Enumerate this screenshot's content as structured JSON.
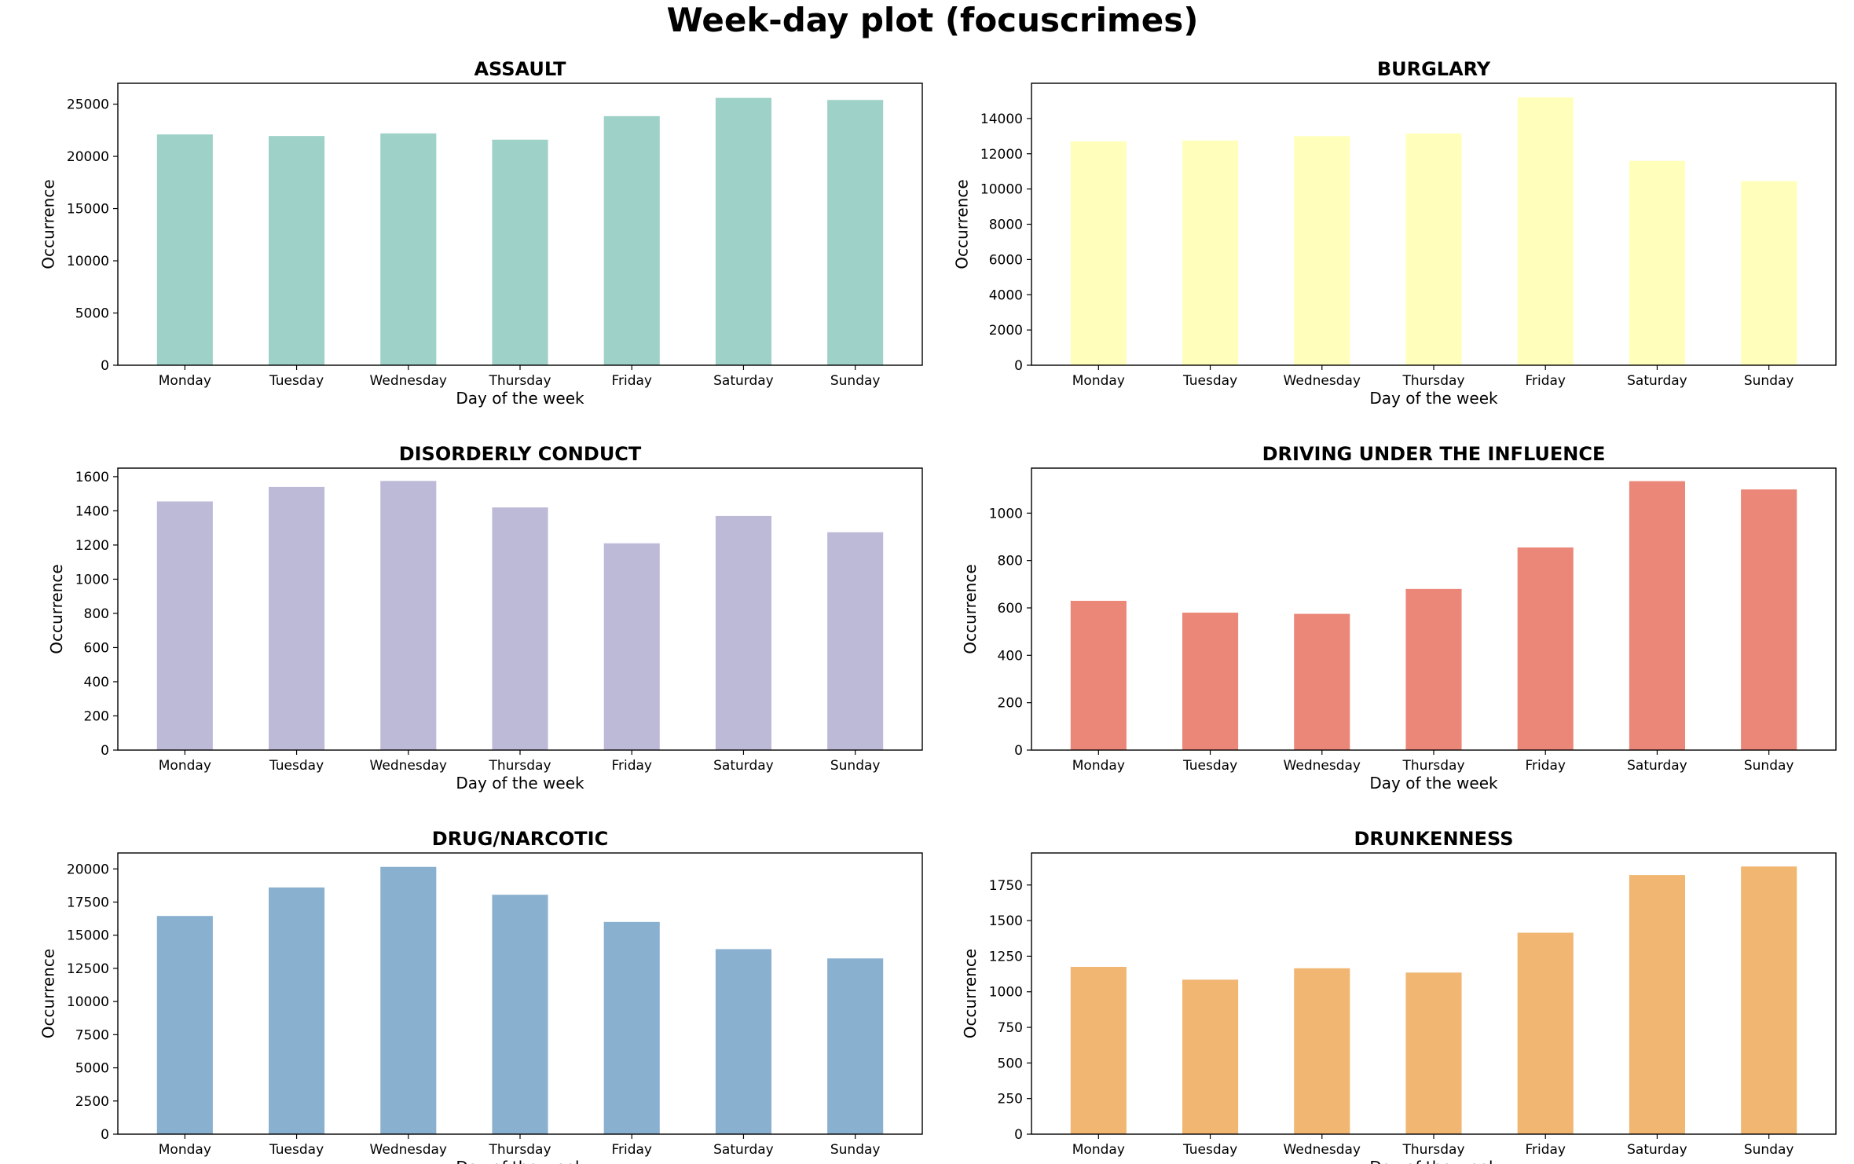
{
  "figure": {
    "title": "Week-day plot (focuscrimes)"
  },
  "chart_data": [
    {
      "type": "bar",
      "title": "ASSAULT",
      "xlabel": "Day of the week",
      "ylabel": "Occurrence",
      "categories": [
        "Monday",
        "Tuesday",
        "Wednesday",
        "Thursday",
        "Friday",
        "Saturday",
        "Sunday"
      ],
      "values": [
        22100,
        21950,
        22200,
        21600,
        23850,
        25600,
        25400
      ],
      "ylim": [
        0,
        27000
      ],
      "yticks": [
        0,
        5000,
        10000,
        15000,
        20000,
        25000
      ],
      "color": "#9ed1c8",
      "grid": false
    },
    {
      "type": "bar",
      "title": "BURGLARY",
      "xlabel": "Day of the week",
      "ylabel": "Occurrence",
      "categories": [
        "Monday",
        "Tuesday",
        "Wednesday",
        "Thursday",
        "Friday",
        "Saturday",
        "Sunday"
      ],
      "values": [
        12700,
        12750,
        13000,
        13150,
        15200,
        11600,
        10450
      ],
      "ylim": [
        0,
        16000
      ],
      "yticks": [
        0,
        2000,
        4000,
        6000,
        8000,
        10000,
        12000,
        14000
      ],
      "color": "#ffffbb",
      "grid": false
    },
    {
      "type": "bar",
      "title": "DISORDERLY CONDUCT",
      "xlabel": "Day of the week",
      "ylabel": "Occurrence",
      "categories": [
        "Monday",
        "Tuesday",
        "Wednesday",
        "Thursday",
        "Friday",
        "Saturday",
        "Sunday"
      ],
      "values": [
        1455,
        1540,
        1575,
        1420,
        1210,
        1370,
        1275
      ],
      "ylim": [
        0,
        1650
      ],
      "yticks": [
        0,
        200,
        400,
        600,
        800,
        1000,
        1200,
        1400,
        1600
      ],
      "color": "#bdbad8",
      "grid": false
    },
    {
      "type": "bar",
      "title": "DRIVING UNDER THE INFLUENCE",
      "xlabel": "Day of the week",
      "ylabel": "Occurrence",
      "categories": [
        "Monday",
        "Tuesday",
        "Wednesday",
        "Thursday",
        "Friday",
        "Saturday",
        "Sunday"
      ],
      "values": [
        630,
        580,
        575,
        680,
        855,
        1135,
        1100
      ],
      "ylim": [
        0,
        1190
      ],
      "yticks": [
        0,
        200,
        400,
        600,
        800,
        1000
      ],
      "color": "#ea8778",
      "grid": false
    },
    {
      "type": "bar",
      "title": "DRUG/NARCOTIC",
      "xlabel": "Day of the week",
      "ylabel": "Occurrence",
      "categories": [
        "Monday",
        "Tuesday",
        "Wednesday",
        "Thursday",
        "Friday",
        "Saturday",
        "Sunday"
      ],
      "values": [
        16450,
        18600,
        20150,
        18050,
        16000,
        13950,
        13250
      ],
      "ylim": [
        0,
        21200
      ],
      "yticks": [
        0,
        2500,
        5000,
        7500,
        10000,
        12500,
        15000,
        17500,
        20000
      ],
      "color": "#8ab0d0",
      "grid": false
    },
    {
      "type": "bar",
      "title": "DRUNKENNESS",
      "xlabel": "Day of the week",
      "ylabel": "Occurrence",
      "categories": [
        "Monday",
        "Tuesday",
        "Wednesday",
        "Thursday",
        "Friday",
        "Saturday",
        "Sunday"
      ],
      "values": [
        1175,
        1085,
        1165,
        1135,
        1415,
        1820,
        1880
      ],
      "ylim": [
        0,
        1975
      ],
      "yticks": [
        0,
        250,
        500,
        750,
        1000,
        1250,
        1500,
        1750
      ],
      "color": "#f0b672",
      "grid": false
    }
  ]
}
